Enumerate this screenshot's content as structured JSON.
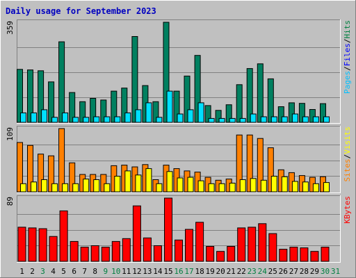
{
  "chart_data": {
    "type": "bar",
    "title": "Daily usage for September 2023",
    "categories": [
      "1",
      "2",
      "3",
      "4",
      "5",
      "6",
      "7",
      "8",
      "9",
      "10",
      "11",
      "12",
      "13",
      "14",
      "15",
      "16",
      "17",
      "18",
      "19",
      "20",
      "21",
      "22",
      "23",
      "24",
      "25",
      "26",
      "27",
      "28",
      "29",
      "30",
      "31"
    ],
    "weekend_days": [
      "3",
      "9",
      "10",
      "16",
      "17",
      "23",
      "24",
      "30",
      "31"
    ],
    "panels": [
      {
        "name": "hits-files-pages",
        "ymax_label": "359",
        "ylim": [
          0,
          359
        ],
        "legend": [
          {
            "label": "Pages",
            "color": "#00C0FF"
          },
          {
            "label": "/",
            "color": "#000000"
          },
          {
            "label": "Files",
            "color": "#0000FF"
          },
          {
            "label": "/",
            "color": "#000000"
          },
          {
            "label": "Hits",
            "color": "#008040"
          }
        ],
        "series": [
          {
            "name": "Hits",
            "color": "#008060",
            "values": [
              190,
              188,
              185,
              145,
              289,
              107,
              74,
              86,
              80,
              112,
              123,
              308,
              132,
              74,
              359,
              112,
              166,
              240,
              60,
              43,
              63,
              135,
              193,
              210,
              156,
              56,
              70,
              68,
              46,
              67,
              0
            ]
          },
          {
            "name": "Pages",
            "color": "#00E0FF",
            "values": [
              34,
              34,
              45,
              18,
              34,
              18,
              18,
              20,
              20,
              20,
              34,
              45,
              70,
              18,
              112,
              30,
              45,
              70,
              14,
              14,
              14,
              14,
              30,
              20,
              20,
              20,
              30,
              20,
              20,
              20,
              0
            ]
          }
        ]
      },
      {
        "name": "visits-sites",
        "ymax_label": "109",
        "ylim": [
          0,
          109
        ],
        "legend": [
          {
            "label": "Sites",
            "color": "#FF8000"
          },
          {
            "label": "/",
            "color": "#000000"
          },
          {
            "label": "Visits",
            "color": "#FFFF00"
          }
        ],
        "series": [
          {
            "name": "Sites",
            "color": "#FF8000",
            "values": [
              85,
              80,
              65,
              62,
              109,
              50,
              30,
              30,
              30,
              45,
              46,
              43,
              47,
              21,
              46,
              40,
              36,
              34,
              25,
              20,
              22,
              98,
              98,
              92,
              76,
              38,
              33,
              28,
              25,
              26,
              0
            ]
          },
          {
            "name": "Visits",
            "color": "#FFFF00",
            "values": [
              14,
              17,
              21,
              14,
              14,
              14,
              22,
              21,
              14,
              27,
              36,
              29,
              40,
              14,
              35,
              24,
              25,
              19,
              14,
              14,
              15,
              21,
              23,
              20,
              27,
              26,
              18,
              17,
              14,
              16,
              0
            ]
          }
        ]
      },
      {
        "name": "kbytes",
        "ymax_label": "89",
        "ylim": [
          0,
          89
        ],
        "legend": [
          {
            "label": "KBytes",
            "color": "#FF0000"
          }
        ],
        "series": [
          {
            "name": "KBytes",
            "color": "#FF0000",
            "values": [
              48,
              47,
              46,
              35,
              71,
              28,
              20,
              22,
              20,
              28,
              32,
              78,
              33,
              22,
              89,
              30,
              45,
              55,
              21,
              14,
              21,
              47,
              48,
              53,
              39,
              17,
              20,
              19,
              14,
              20,
              0
            ]
          }
        ]
      }
    ]
  }
}
